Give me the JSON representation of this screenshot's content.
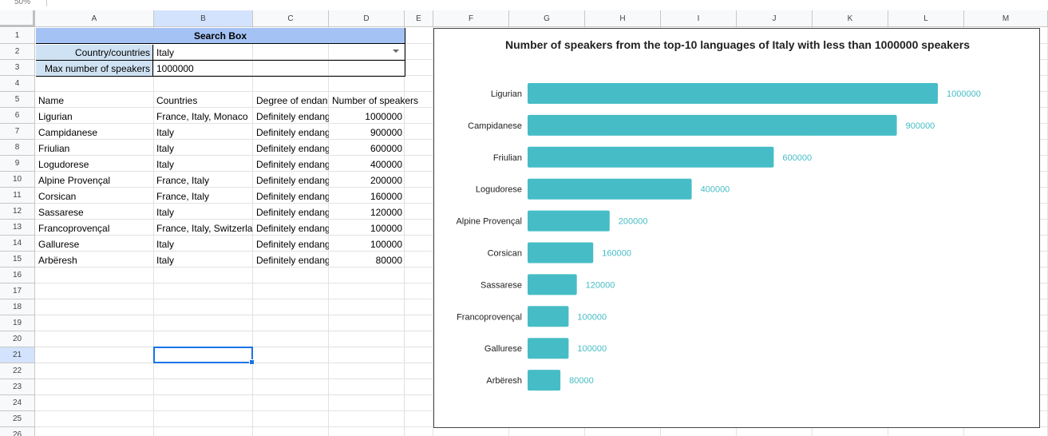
{
  "toolbar": {
    "name_box": "50%"
  },
  "columns": [
    "A",
    "B",
    "C",
    "D",
    "E",
    "F",
    "G",
    "H",
    "I",
    "J",
    "K",
    "L",
    "M"
  ],
  "rows": [
    "1",
    "2",
    "3",
    "4",
    "5",
    "6",
    "7",
    "8",
    "9",
    "10",
    "11",
    "12",
    "13",
    "14",
    "15",
    "16",
    "17",
    "18",
    "19",
    "20",
    "21",
    "22",
    "23",
    "24",
    "25",
    "26"
  ],
  "search_box": {
    "title": "Search Box",
    "country_label": "Country/countries",
    "country_value": "Italy",
    "max_label": "Max number of speakers",
    "max_value": "1000000"
  },
  "table": {
    "headers": [
      "Name",
      "Countries",
      "Degree of endan",
      "Number of speakers"
    ],
    "rows": [
      [
        "Ligurian",
        "France, Italy, Monaco",
        "Definitely endang",
        "1000000"
      ],
      [
        "Campidanese",
        "Italy",
        "Definitely endang",
        "900000"
      ],
      [
        "Friulian",
        "Italy",
        "Definitely endang",
        "600000"
      ],
      [
        "Logudorese",
        "Italy",
        "Definitely endang",
        "400000"
      ],
      [
        "Alpine Provençal",
        "France, Italy",
        "Definitely endang",
        "200000"
      ],
      [
        "Corsican",
        "France, Italy",
        "Definitely endang",
        "160000"
      ],
      [
        "Sassarese",
        "Italy",
        "Definitely endang",
        "120000"
      ],
      [
        "Francoprovençal",
        "France, Italy, Switzerla",
        "Definitely endang",
        "100000"
      ],
      [
        "Gallurese",
        "Italy",
        "Definitely endang",
        "100000"
      ],
      [
        "Arbëresh",
        "Italy",
        "Definitely endang",
        "80000"
      ]
    ]
  },
  "selected_cell": "B21",
  "chart_data": {
    "type": "bar",
    "orientation": "horizontal",
    "title": "Number of speakers from the top-10 languages of Italy with less than 1000000 speakers",
    "categories": [
      "Ligurian",
      "Campidanese",
      "Friulian",
      "Logudorese",
      "Alpine Provençal",
      "Corsican",
      "Sassarese",
      "Francoprovençal",
      "Gallurese",
      "Arbëresh"
    ],
    "values": [
      1000000,
      900000,
      600000,
      400000,
      200000,
      160000,
      120000,
      100000,
      100000,
      80000
    ],
    "value_labels": [
      "1000000",
      "900000",
      "600000",
      "400000",
      "200000",
      "160000",
      "120000",
      "100000",
      "100000",
      "80000"
    ],
    "xlim": [
      0,
      1000000
    ],
    "grid": false,
    "legend": "none",
    "bar_color": "#46bdc6"
  }
}
